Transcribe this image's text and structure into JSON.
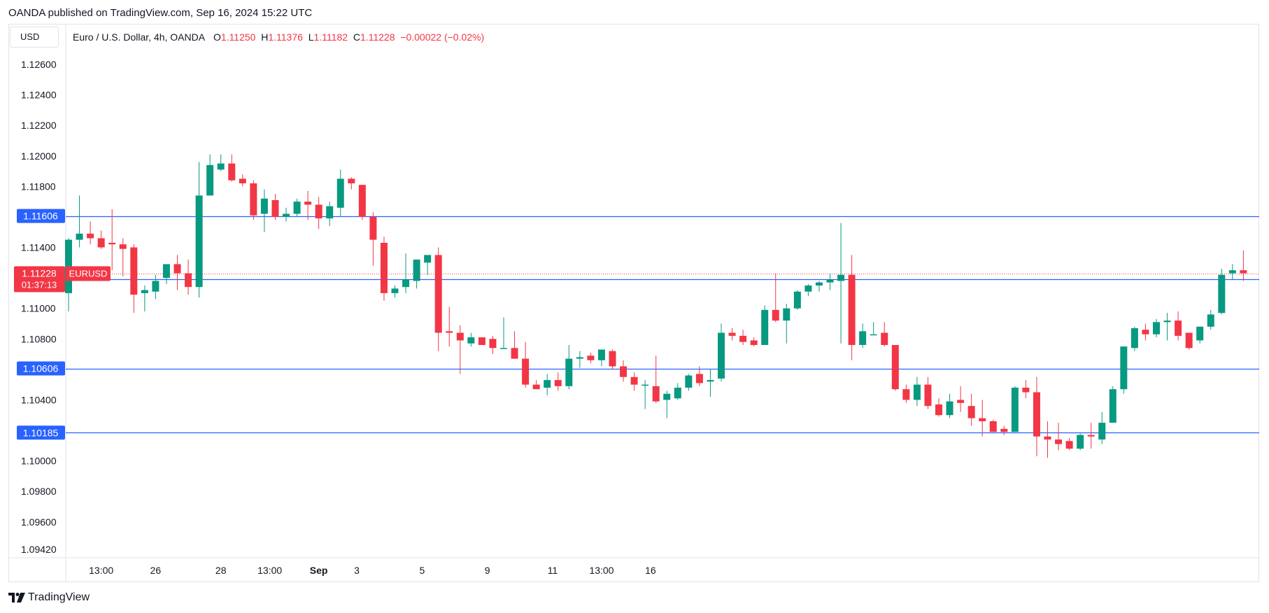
{
  "header": {
    "published": "OANDA published on TradingView.com, Sep 16, 2024 15:22 UTC"
  },
  "toolbar": {
    "currency": "USD"
  },
  "legend": {
    "symbol": "Euro / U.S. Dollar, 4h, OANDA",
    "o_label": "O",
    "o_value": "1.11250",
    "h_label": "H",
    "h_value": "1.11376",
    "l_label": "L",
    "l_value": "1.11182",
    "c_label": "C",
    "c_value": "1.11228",
    "change": "−0.00022 (−0.02%)"
  },
  "footer": {
    "brand": "TradingView"
  },
  "colors": {
    "up": "#089981",
    "down": "#f23645",
    "level_line": "#2962ff",
    "grid_border": "#e0e3eb",
    "axis_text": "#131722"
  },
  "chart_data": {
    "type": "candlestick",
    "title": "Euro / U.S. Dollar, 4h, OANDA",
    "ylim": [
      1.0935,
      1.1278
    ],
    "y_ticks": [
      "1.12600",
      "1.12400",
      "1.12200",
      "1.12000",
      "1.11800",
      "1.11400",
      "1.11000",
      "1.10800",
      "1.10400",
      "1.10000",
      "1.09800",
      "1.09600",
      "1.09420"
    ],
    "x_tick_labels": [
      "13:00",
      "26",
      "28",
      "13:00",
      "Sep",
      "3",
      "5",
      "9",
      "11",
      "13:00",
      "16"
    ],
    "x_tick_candle_index": [
      3,
      8,
      14,
      18.5,
      23,
      26.5,
      32.5,
      38.5,
      44.5,
      49,
      53.5
    ],
    "horizontal_levels": [
      {
        "label": "1.11606",
        "value": 1.11606
      },
      {
        "label": "1.11189",
        "value": 1.11189
      },
      {
        "label": "1.10606",
        "value": 1.10606
      },
      {
        "label": "1.10185",
        "value": 1.10185
      }
    ],
    "last_price": {
      "label": "1.11228",
      "value": 1.11228,
      "countdown": "01:37:13",
      "symbol": "EURUSD"
    },
    "candles": [
      {
        "o": 1.111,
        "h": 1.1146,
        "l": 1.1098,
        "c": 1.1145
      },
      {
        "o": 1.1145,
        "h": 1.1174,
        "l": 1.114,
        "c": 1.1149
      },
      {
        "o": 1.1149,
        "h": 1.1157,
        "l": 1.1142,
        "c": 1.1146
      },
      {
        "o": 1.1146,
        "h": 1.1151,
        "l": 1.1139,
        "c": 1.114
      },
      {
        "o": 1.1143,
        "h": 1.1165,
        "l": 1.1125,
        "c": 1.1142
      },
      {
        "o": 1.1142,
        "h": 1.1146,
        "l": 1.1121,
        "c": 1.1139
      },
      {
        "o": 1.114,
        "h": 1.1142,
        "l": 1.1097,
        "c": 1.1109
      },
      {
        "o": 1.111,
        "h": 1.1115,
        "l": 1.1098,
        "c": 1.1112
      },
      {
        "o": 1.1111,
        "h": 1.1122,
        "l": 1.1106,
        "c": 1.1118
      },
      {
        "o": 1.112,
        "h": 1.1129,
        "l": 1.1116,
        "c": 1.1129
      },
      {
        "o": 1.1129,
        "h": 1.1135,
        "l": 1.1112,
        "c": 1.1123
      },
      {
        "o": 1.1123,
        "h": 1.1132,
        "l": 1.1109,
        "c": 1.1114
      },
      {
        "o": 1.1114,
        "h": 1.1196,
        "l": 1.1107,
        "c": 1.1174
      },
      {
        "o": 1.1174,
        "h": 1.1201,
        "l": 1.1174,
        "c": 1.1194
      },
      {
        "o": 1.1191,
        "h": 1.1201,
        "l": 1.119,
        "c": 1.1195
      },
      {
        "o": 1.1195,
        "h": 1.1201,
        "l": 1.1183,
        "c": 1.1184
      },
      {
        "o": 1.1185,
        "h": 1.1188,
        "l": 1.118,
        "c": 1.1182
      },
      {
        "o": 1.1182,
        "h": 1.1184,
        "l": 1.1158,
        "c": 1.1161
      },
      {
        "o": 1.1162,
        "h": 1.1178,
        "l": 1.115,
        "c": 1.1172
      },
      {
        "o": 1.1171,
        "h": 1.1175,
        "l": 1.1158,
        "c": 1.116
      },
      {
        "o": 1.116,
        "h": 1.1166,
        "l": 1.1157,
        "c": 1.1162
      },
      {
        "o": 1.1162,
        "h": 1.1172,
        "l": 1.116,
        "c": 1.117
      },
      {
        "o": 1.117,
        "h": 1.1177,
        "l": 1.1158,
        "c": 1.1168
      },
      {
        "o": 1.1168,
        "h": 1.1173,
        "l": 1.1152,
        "c": 1.1159
      },
      {
        "o": 1.1159,
        "h": 1.117,
        "l": 1.1154,
        "c": 1.1167
      },
      {
        "o": 1.1166,
        "h": 1.1191,
        "l": 1.116,
        "c": 1.1185
      },
      {
        "o": 1.1185,
        "h": 1.1186,
        "l": 1.1178,
        "c": 1.1182
      },
      {
        "o": 1.1181,
        "h": 1.1181,
        "l": 1.1158,
        "c": 1.116
      },
      {
        "o": 1.116,
        "h": 1.1163,
        "l": 1.1128,
        "c": 1.1145
      },
      {
        "o": 1.1143,
        "h": 1.1147,
        "l": 1.1105,
        "c": 1.111
      },
      {
        "o": 1.111,
        "h": 1.1115,
        "l": 1.1107,
        "c": 1.1113
      },
      {
        "o": 1.1114,
        "h": 1.1136,
        "l": 1.111,
        "c": 1.1119
      },
      {
        "o": 1.1118,
        "h": 1.113,
        "l": 1.1113,
        "c": 1.1132
      },
      {
        "o": 1.113,
        "h": 1.1135,
        "l": 1.1122,
        "c": 1.1135
      },
      {
        "o": 1.1135,
        "h": 1.114,
        "l": 1.1072,
        "c": 1.1084
      },
      {
        "o": 1.1085,
        "h": 1.1101,
        "l": 1.1075,
        "c": 1.1084
      },
      {
        "o": 1.1084,
        "h": 1.1089,
        "l": 1.1057,
        "c": 1.1079
      },
      {
        "o": 1.1077,
        "h": 1.1084,
        "l": 1.1075,
        "c": 1.1081
      },
      {
        "o": 1.1081,
        "h": 1.1081,
        "l": 1.1076,
        "c": 1.1076
      },
      {
        "o": 1.108,
        "h": 1.1082,
        "l": 1.107,
        "c": 1.1074
      },
      {
        "o": 1.1074,
        "h": 1.1094,
        "l": 1.1074,
        "c": 1.1074
      },
      {
        "o": 1.1074,
        "h": 1.1085,
        "l": 1.1067,
        "c": 1.1067
      },
      {
        "o": 1.1067,
        "h": 1.1078,
        "l": 1.1048,
        "c": 1.105
      },
      {
        "o": 1.105,
        "h": 1.1053,
        "l": 1.1048,
        "c": 1.1047
      },
      {
        "o": 1.1048,
        "h": 1.1057,
        "l": 1.1043,
        "c": 1.1053
      },
      {
        "o": 1.1053,
        "h": 1.1058,
        "l": 1.1046,
        "c": 1.1049
      },
      {
        "o": 1.1049,
        "h": 1.1076,
        "l": 1.1047,
        "c": 1.1067
      },
      {
        "o": 1.1067,
        "h": 1.1072,
        "l": 1.1061,
        "c": 1.1068
      },
      {
        "o": 1.1069,
        "h": 1.1071,
        "l": 1.1064,
        "c": 1.1066
      },
      {
        "o": 1.1066,
        "h": 1.1073,
        "l": 1.1062,
        "c": 1.1073
      },
      {
        "o": 1.1072,
        "h": 1.1073,
        "l": 1.106,
        "c": 1.1062
      },
      {
        "o": 1.1062,
        "h": 1.1066,
        "l": 1.1052,
        "c": 1.1055
      },
      {
        "o": 1.1055,
        "h": 1.1058,
        "l": 1.1046,
        "c": 1.105
      },
      {
        "o": 1.105,
        "h": 1.1053,
        "l": 1.1034,
        "c": 1.105
      },
      {
        "o": 1.1049,
        "h": 1.1069,
        "l": 1.1038,
        "c": 1.1039
      },
      {
        "o": 1.104,
        "h": 1.1046,
        "l": 1.1028,
        "c": 1.1044
      },
      {
        "o": 1.1041,
        "h": 1.1051,
        "l": 1.104,
        "c": 1.1048
      },
      {
        "o": 1.1048,
        "h": 1.1057,
        "l": 1.1046,
        "c": 1.1056
      },
      {
        "o": 1.1057,
        "h": 1.1062,
        "l": 1.1049,
        "c": 1.1051
      },
      {
        "o": 1.1052,
        "h": 1.106,
        "l": 1.1042,
        "c": 1.1053
      },
      {
        "o": 1.1054,
        "h": 1.109,
        "l": 1.1052,
        "c": 1.1084
      },
      {
        "o": 1.1084,
        "h": 1.1087,
        "l": 1.1079,
        "c": 1.1082
      },
      {
        "o": 1.1082,
        "h": 1.1086,
        "l": 1.1076,
        "c": 1.1078
      },
      {
        "o": 1.1079,
        "h": 1.1081,
        "l": 1.1075,
        "c": 1.1076
      },
      {
        "o": 1.1076,
        "h": 1.1102,
        "l": 1.1076,
        "c": 1.1099
      },
      {
        "o": 1.1099,
        "h": 1.1123,
        "l": 1.1091,
        "c": 1.1092
      },
      {
        "o": 1.1092,
        "h": 1.1103,
        "l": 1.1077,
        "c": 1.11
      },
      {
        "o": 1.11,
        "h": 1.1112,
        "l": 1.1099,
        "c": 1.1111
      },
      {
        "o": 1.1111,
        "h": 1.1116,
        "l": 1.1108,
        "c": 1.1115
      },
      {
        "o": 1.1115,
        "h": 1.1118,
        "l": 1.1111,
        "c": 1.1117
      },
      {
        "o": 1.1117,
        "h": 1.1123,
        "l": 1.1112,
        "c": 1.1119
      },
      {
        "o": 1.1118,
        "h": 1.1156,
        "l": 1.1077,
        "c": 1.1122
      },
      {
        "o": 1.1122,
        "h": 1.1135,
        "l": 1.1066,
        "c": 1.1076
      },
      {
        "o": 1.1076,
        "h": 1.109,
        "l": 1.1074,
        "c": 1.1085
      },
      {
        "o": 1.1083,
        "h": 1.1091,
        "l": 1.1083,
        "c": 1.1083
      },
      {
        "o": 1.1084,
        "h": 1.1091,
        "l": 1.1075,
        "c": 1.1076
      },
      {
        "o": 1.1076,
        "h": 1.1076,
        "l": 1.1046,
        "c": 1.1047
      },
      {
        "o": 1.1047,
        "h": 1.105,
        "l": 1.1038,
        "c": 1.104
      },
      {
        "o": 1.104,
        "h": 1.1055,
        "l": 1.1036,
        "c": 1.105
      },
      {
        "o": 1.105,
        "h": 1.1055,
        "l": 1.1034,
        "c": 1.1036
      },
      {
        "o": 1.1037,
        "h": 1.1041,
        "l": 1.1029,
        "c": 1.103
      },
      {
        "o": 1.103,
        "h": 1.1044,
        "l": 1.1028,
        "c": 1.1039
      },
      {
        "o": 1.104,
        "h": 1.1049,
        "l": 1.1032,
        "c": 1.1038
      },
      {
        "o": 1.1036,
        "h": 1.1044,
        "l": 1.1023,
        "c": 1.1028
      },
      {
        "o": 1.1028,
        "h": 1.104,
        "l": 1.1016,
        "c": 1.1026
      },
      {
        "o": 1.1026,
        "h": 1.1027,
        "l": 1.102,
        "c": 1.1019
      },
      {
        "o": 1.1021,
        "h": 1.1023,
        "l": 1.1017,
        "c": 1.1019
      },
      {
        "o": 1.1019,
        "h": 1.1049,
        "l": 1.102,
        "c": 1.1048
      },
      {
        "o": 1.1048,
        "h": 1.1053,
        "l": 1.1041,
        "c": 1.1045
      },
      {
        "o": 1.1045,
        "h": 1.1055,
        "l": 1.1003,
        "c": 1.1016
      },
      {
        "o": 1.1016,
        "h": 1.1026,
        "l": 1.1002,
        "c": 1.1014
      },
      {
        "o": 1.1014,
        "h": 1.1025,
        "l": 1.1007,
        "c": 1.1011
      },
      {
        "o": 1.1013,
        "h": 1.1015,
        "l": 1.1007,
        "c": 1.1008
      },
      {
        "o": 1.1008,
        "h": 1.1018,
        "l": 1.1007,
        "c": 1.1017
      },
      {
        "o": 1.1017,
        "h": 1.1025,
        "l": 1.1008,
        "c": 1.1016
      },
      {
        "o": 1.1014,
        "h": 1.1032,
        "l": 1.1011,
        "c": 1.1025
      },
      {
        "o": 1.1025,
        "h": 1.1049,
        "l": 1.1025,
        "c": 1.1047
      },
      {
        "o": 1.1047,
        "h": 1.1075,
        "l": 1.1044,
        "c": 1.1075
      },
      {
        "o": 1.1074,
        "h": 1.1088,
        "l": 1.1072,
        "c": 1.1087
      },
      {
        "o": 1.1086,
        "h": 1.109,
        "l": 1.1079,
        "c": 1.1083
      },
      {
        "o": 1.1083,
        "h": 1.1093,
        "l": 1.1081,
        "c": 1.1091
      },
      {
        "o": 1.1091,
        "h": 1.1097,
        "l": 1.1079,
        "c": 1.1092
      },
      {
        "o": 1.1092,
        "h": 1.1098,
        "l": 1.1079,
        "c": 1.1082
      },
      {
        "o": 1.1084,
        "h": 1.1084,
        "l": 1.1073,
        "c": 1.1074
      },
      {
        "o": 1.1079,
        "h": 1.1088,
        "l": 1.1077,
        "c": 1.1088
      },
      {
        "o": 1.1088,
        "h": 1.1099,
        "l": 1.1086,
        "c": 1.1096
      },
      {
        "o": 1.1097,
        "h": 1.1126,
        "l": 1.1096,
        "c": 1.1122
      },
      {
        "o": 1.1123,
        "h": 1.1129,
        "l": 1.1119,
        "c": 1.1125
      },
      {
        "o": 1.1125,
        "h": 1.1138,
        "l": 1.1118,
        "c": 1.1123
      }
    ]
  }
}
